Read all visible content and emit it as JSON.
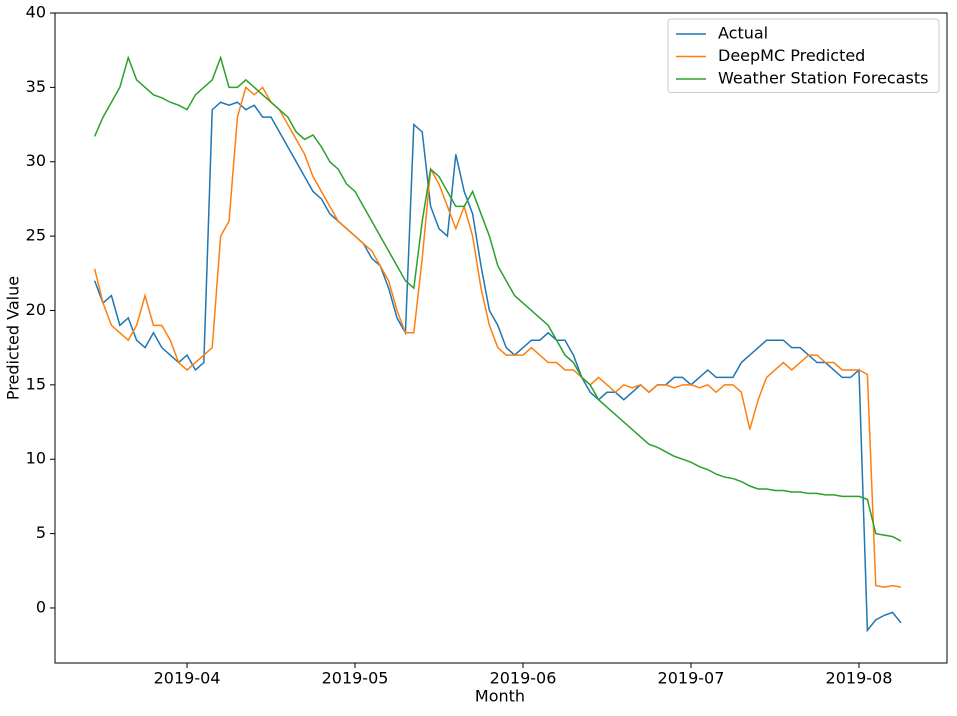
{
  "chart_data": {
    "type": "line",
    "xlabel": "Month",
    "ylabel": "Predicted Value",
    "xlim": [
      3.214,
      8.524
    ],
    "ylim": [
      -3.7,
      40
    ],
    "xticks": [
      {
        "value": 4,
        "label": "2019-04"
      },
      {
        "value": 5,
        "label": "2019-05"
      },
      {
        "value": 6,
        "label": "2019-06"
      },
      {
        "value": 7,
        "label": "2019-07"
      },
      {
        "value": 8,
        "label": "2019-08"
      }
    ],
    "yticks": [
      0,
      5,
      10,
      15,
      20,
      25,
      30,
      35,
      40
    ],
    "grid": false,
    "legend": "upper right",
    "x": [
      3.45,
      3.5,
      3.55,
      3.6,
      3.65,
      3.7,
      3.75,
      3.8,
      3.85,
      3.9,
      3.95,
      4.0,
      4.05,
      4.1,
      4.15,
      4.2,
      4.25,
      4.3,
      4.35,
      4.4,
      4.45,
      4.5,
      4.55,
      4.6,
      4.65,
      4.7,
      4.75,
      4.8,
      4.85,
      4.9,
      4.95,
      5.0,
      5.05,
      5.1,
      5.15,
      5.2,
      5.25,
      5.3,
      5.35,
      5.4,
      5.45,
      5.5,
      5.55,
      5.6,
      5.65,
      5.7,
      5.75,
      5.8,
      5.85,
      5.9,
      5.95,
      6.0,
      6.05,
      6.1,
      6.15,
      6.2,
      6.25,
      6.3,
      6.35,
      6.4,
      6.45,
      6.5,
      6.55,
      6.6,
      6.65,
      6.7,
      6.75,
      6.8,
      6.85,
      6.9,
      6.95,
      7.0,
      7.05,
      7.1,
      7.15,
      7.2,
      7.25,
      7.3,
      7.35,
      7.4,
      7.45,
      7.5,
      7.55,
      7.6,
      7.65,
      7.7,
      7.75,
      7.8,
      7.85,
      7.9,
      7.95,
      8.0,
      8.05,
      8.1,
      8.15,
      8.2,
      8.25
    ],
    "series": [
      {
        "name": "Actual",
        "color": "#1f77b4",
        "values": [
          22,
          20.5,
          21,
          19,
          19.5,
          18,
          17.5,
          18.5,
          17.5,
          17,
          16.5,
          17,
          16,
          16.5,
          33.5,
          34,
          33.8,
          34,
          33.5,
          33.8,
          33,
          33,
          32,
          31,
          30,
          29,
          28,
          27.5,
          26.5,
          26,
          25.5,
          25,
          24.5,
          23.5,
          23,
          21.5,
          19.5,
          18.5,
          32.5,
          32,
          27,
          25.5,
          25,
          30.5,
          28,
          26.5,
          23,
          20,
          19,
          17.5,
          17,
          17.5,
          18,
          18,
          18.5,
          18,
          18,
          17,
          15.5,
          14.5,
          14,
          14.5,
          14.5,
          14,
          14.5,
          15,
          14.5,
          15,
          15,
          15.5,
          15.5,
          15,
          15.5,
          16,
          15.5,
          15.5,
          15.5,
          16.5,
          17,
          17.5,
          18,
          18,
          18,
          17.5,
          17.5,
          17,
          16.5,
          16.5,
          16,
          15.5,
          15.5,
          16,
          -1.5,
          -0.8,
          -0.5,
          -0.3,
          -1
        ]
      },
      {
        "name": "DeepMC Predicted",
        "color": "#ff7f0e",
        "values": [
          22.8,
          20.5,
          19,
          18.5,
          18,
          19,
          21,
          19,
          19,
          18,
          16.5,
          16,
          16.5,
          17,
          17.5,
          25,
          26,
          33,
          35,
          34.5,
          35,
          34,
          33.5,
          32.5,
          31.5,
          30.5,
          29,
          28,
          27,
          26,
          25.5,
          25,
          24.5,
          24,
          23,
          22,
          20,
          18.5,
          18.5,
          23.5,
          29.5,
          28.5,
          27,
          25.5,
          27,
          25,
          21.5,
          19,
          17.5,
          17,
          17,
          17,
          17.5,
          17,
          16.5,
          16.5,
          16,
          16,
          15.5,
          15,
          15.5,
          15,
          14.5,
          15,
          14.8,
          15,
          14.5,
          15,
          15,
          14.8,
          15,
          15,
          14.8,
          15,
          14.5,
          15,
          15,
          14.5,
          12,
          14,
          15.5,
          16,
          16.5,
          16,
          16.5,
          17,
          17,
          16.5,
          16.5,
          16,
          16,
          16,
          15.7,
          1.5,
          1.4,
          1.5,
          1.4
        ]
      },
      {
        "name": "Weather Station Forecasts",
        "color": "#2ca02c",
        "values": [
          31.7,
          33,
          34,
          35,
          37,
          35.5,
          35,
          34.5,
          34.3,
          34,
          33.8,
          33.5,
          34.5,
          35,
          35.5,
          37,
          35,
          35,
          35.5,
          35,
          34.5,
          34,
          33.5,
          33,
          32,
          31.5,
          31.8,
          31,
          30,
          29.5,
          28.5,
          28,
          27,
          26,
          25,
          24,
          23,
          22,
          21.5,
          26,
          29.5,
          29,
          28,
          27,
          27,
          28,
          26.5,
          25,
          23,
          22,
          21,
          20.5,
          20,
          19.5,
          19,
          18,
          17,
          16.5,
          15.5,
          15,
          14,
          13.5,
          13,
          12.5,
          12,
          11.5,
          11,
          10.8,
          10.5,
          10.2,
          10,
          9.8,
          9.5,
          9.3,
          9,
          8.8,
          8.7,
          8.5,
          8.2,
          8,
          8,
          7.9,
          7.9,
          7.8,
          7.8,
          7.7,
          7.7,
          7.6,
          7.6,
          7.5,
          7.5,
          7.5,
          7.3,
          5,
          4.9,
          4.8,
          4.5
        ]
      }
    ]
  }
}
